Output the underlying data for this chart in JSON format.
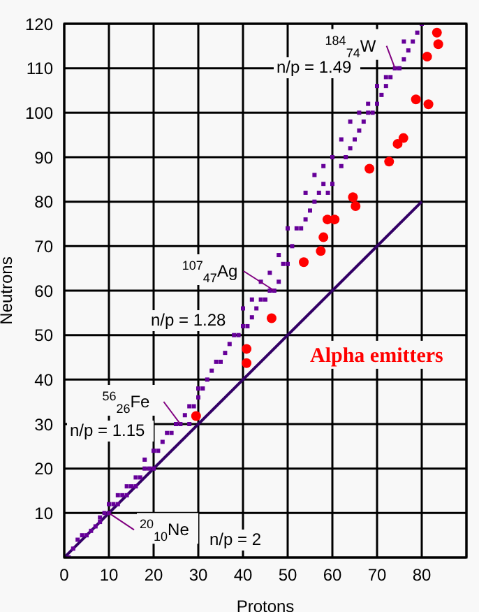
{
  "chart_data": {
    "type": "scatter",
    "xlabel": "Protons",
    "ylabel": "Neutrons",
    "xlim": [
      0,
      90
    ],
    "xticks": [
      0,
      10,
      20,
      30,
      40,
      50,
      60,
      70,
      80
    ],
    "ylim": [
      0,
      120
    ],
    "yticks": [
      10,
      20,
      30,
      40,
      50,
      60,
      70,
      80,
      90,
      100,
      110,
      120
    ],
    "grid": true,
    "series": [
      {
        "marker": "square",
        "color": "#660099",
        "x": [
          1,
          2,
          3,
          4,
          5,
          6,
          7,
          8,
          8,
          9,
          10,
          10,
          11,
          12,
          12,
          13,
          14,
          14,
          15,
          16,
          16,
          17,
          18,
          18,
          19,
          20,
          20,
          21,
          22,
          23,
          24,
          25,
          26,
          27,
          28,
          28,
          29,
          30,
          30,
          31,
          32,
          33,
          34,
          35,
          36,
          37,
          38,
          39,
          40,
          40,
          41,
          42,
          42,
          43,
          44,
          44,
          45,
          46,
          46,
          47,
          48,
          48,
          49,
          50,
          50,
          51,
          52,
          53,
          54,
          54,
          55,
          56,
          56,
          57,
          58,
          58,
          59,
          60,
          60,
          62,
          62,
          63,
          64,
          64,
          65,
          66,
          66,
          67,
          68,
          68,
          69,
          70,
          70,
          71,
          72,
          72,
          73,
          74,
          75,
          76,
          76,
          77,
          78,
          79,
          80
        ],
        "values": [
          0,
          2,
          4,
          5,
          5,
          6,
          7,
          8,
          9,
          10,
          10,
          12,
          12,
          12,
          14,
          14,
          14,
          16,
          16,
          16,
          18,
          18,
          20,
          22,
          20,
          20,
          24,
          24,
          26,
          28,
          28,
          30,
          30,
          32,
          30,
          34,
          34,
          36,
          38,
          38,
          40,
          42,
          44,
          44,
          46,
          48,
          50,
          50,
          52,
          56,
          52,
          54,
          58,
          56,
          58,
          62,
          58,
          60,
          64,
          60,
          62,
          68,
          66,
          66,
          74,
          70,
          74,
          74,
          76,
          82,
          78,
          80,
          86,
          82,
          84,
          88,
          82,
          84,
          90,
          88,
          94,
          90,
          92,
          98,
          94,
          96,
          100,
          98,
          100,
          102,
          100,
          102,
          106,
          104,
          106,
          108,
          108,
          110,
          110,
          112,
          116,
          114,
          116,
          118,
          120
        ]
      },
      {
        "name": "Alpha emitters",
        "marker": "circle",
        "color": "#ff0000",
        "x": [
          83.4,
          83.7,
          81.2,
          78.7,
          81.5,
          75.9,
          74.6,
          72.7,
          68.3,
          64.6,
          65.2,
          58.9,
          60.5,
          58,
          57.4,
          53.6,
          46.4,
          40.8,
          40.8,
          29.5
        ],
        "values": [
          118,
          115.4,
          112.6,
          103,
          101.9,
          94.3,
          93,
          89,
          87.4,
          81,
          79,
          76,
          76,
          72,
          68.9,
          66.4,
          53.8,
          46.9,
          43.7,
          31.8
        ]
      },
      {
        "type": "line",
        "marker": "none",
        "line_style": "solid",
        "color": "#330066",
        "x": [
          0,
          80
        ],
        "values": [
          0,
          80
        ]
      }
    ],
    "annotations": [
      {
        "text": "$^{184}$$_{74}$W",
        "x": 74,
        "y": 110
      },
      {
        "text": "$^{107}$$_{47}$Ag",
        "x": 47,
        "y": 60
      },
      {
        "text": "$^{56}$$_{26}$Fe",
        "x": 26,
        "y": 30
      },
      {
        "text": "$^{20}$$_{10}$Ne",
        "x": 10,
        "y": 10
      },
      "n/p = 1.49",
      "n/p = 1.28",
      "n/p = 1.15",
      "n/p = 2"
    ]
  }
}
